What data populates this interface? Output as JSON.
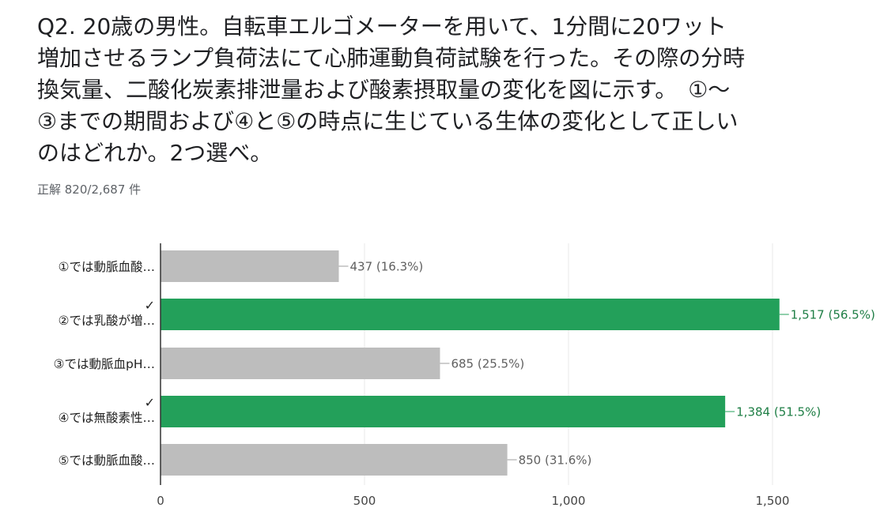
{
  "question": {
    "lines": [
      "Q2.  20歳の男性。自転車エルゴメーターを用いて、1分間に20ワット",
      "増加させるランプ負荷法にて心肺運動負荷試験を行った。その際の分時",
      "換気量、二酸化炭素排泄量および酸素摂取量の変化を図に示す。　①〜",
      "③までの期間および④と⑤の時点に生じている生体の変化として正しい",
      "のはどれか。2つ選べ。"
    ]
  },
  "score_text": "正解 820/2,687 件",
  "colors": {
    "correct": "#23a05a",
    "incorrect": "#bdbdbd",
    "correct_text": "#1e7e45",
    "incorrect_text": "#5f5f5f",
    "axis": "#333333",
    "grid": "#e8e8e8"
  },
  "chart_data": {
    "type": "bar",
    "orientation": "horizontal",
    "categories": [
      "①では動脈血酸…",
      "②では乳酸が増…",
      "③では動脈血pH…",
      "④では無酸素性…",
      "⑤では動脈血酸…"
    ],
    "values": [
      437,
      1517,
      685,
      1384,
      850
    ],
    "data_labels": [
      "437 (16.3%)",
      "1,517 (56.5%)",
      "685 (25.5%)",
      "1,384 (51.5%)",
      "850 (31.6%)"
    ],
    "correct": [
      false,
      true,
      false,
      true,
      false
    ],
    "check_mark": "✓",
    "x_ticks": [
      0,
      500,
      1000,
      1500
    ],
    "x_tick_labels": [
      "0",
      "500",
      "1,000",
      "1,500"
    ],
    "xlim": [
      0,
      1520
    ],
    "grid": true
  }
}
